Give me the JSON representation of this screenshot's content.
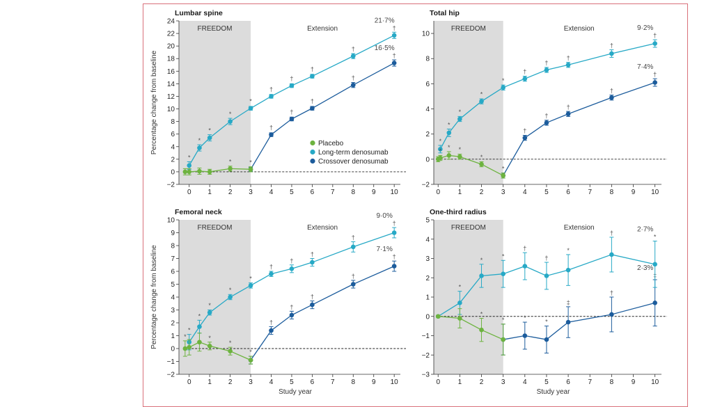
{
  "colors": {
    "placebo": "#6db33f",
    "long_term": "#27a9c6",
    "crossover": "#1c5c9c",
    "shade": "#dcdcdc",
    "frame": "#d9707a",
    "axis": "#333333",
    "marker_text": "#555555"
  },
  "figure": {
    "region_freedom": "FREEDOM",
    "region_extension": "Extension",
    "y_axis_label": "Percentage change from baseline",
    "x_axis_label": "Study year",
    "legend": [
      {
        "key": "placebo",
        "label": "Placebo"
      },
      {
        "key": "long_term",
        "label": "Long-term denosumab"
      },
      {
        "key": "crossover",
        "label": "Crossover denosumab"
      }
    ]
  },
  "chart_data": [
    {
      "type": "line",
      "title": "Lumbar spine",
      "xlabel": "Study year",
      "ylabel": "Percentage change from baseline",
      "x_ticks": [
        0,
        1,
        2,
        3,
        4,
        5,
        6,
        7,
        8,
        9,
        10
      ],
      "ylim": [
        -2,
        24
      ],
      "y_ticks": [
        -2,
        0,
        2,
        4,
        6,
        8,
        10,
        12,
        14,
        16,
        18,
        20,
        22,
        24
      ],
      "shaded_range": [
        -0.5,
        3
      ],
      "series": [
        {
          "key": "placebo",
          "name": "Placebo",
          "x": [
            -0.2,
            0,
            0.5,
            1,
            2,
            3
          ],
          "y": [
            0,
            0,
            0.1,
            0,
            0.5,
            0.4
          ],
          "err": [
            0.5,
            0.5,
            0.5,
            0.4,
            0.4,
            0.4
          ],
          "markers": [
            "",
            "",
            "",
            "",
            "*",
            "*"
          ]
        },
        {
          "key": "long_term",
          "name": "Long-term denosumab",
          "x": [
            0,
            0.5,
            1,
            2,
            3,
            4,
            5,
            6,
            8,
            10
          ],
          "y": [
            1.0,
            3.8,
            5.4,
            8.0,
            10.1,
            12.0,
            13.7,
            15.2,
            18.4,
            21.7
          ],
          "err": [
            0.6,
            0.5,
            0.5,
            0.5,
            0.3,
            0.3,
            0.3,
            0.3,
            0.4,
            0.5
          ],
          "markers": [
            "*",
            "*",
            "*",
            "*",
            "*",
            "†",
            "†",
            "†",
            "†",
            "†"
          ],
          "end_label": "21·7%"
        },
        {
          "key": "crossover",
          "name": "Crossover denosumab",
          "x": [
            3,
            4,
            5,
            6,
            8,
            10
          ],
          "y": [
            0.4,
            5.9,
            8.4,
            10.1,
            13.8,
            17.3
          ],
          "err": [
            0.3,
            0.3,
            0.3,
            0.3,
            0.4,
            0.5
          ],
          "markers": [
            "",
            "†",
            "†",
            "†",
            "†",
            "†"
          ],
          "end_label": "16·5%"
        }
      ]
    },
    {
      "type": "line",
      "title": "Total hip",
      "xlabel": "Study year",
      "ylabel": "",
      "x_ticks": [
        0,
        1,
        2,
        3,
        4,
        5,
        6,
        7,
        8,
        9,
        10
      ],
      "ylim": [
        -2,
        11
      ],
      "y_ticks": [
        -2,
        0,
        2,
        4,
        6,
        8,
        10
      ],
      "shaded_range": [
        -0.5,
        3
      ],
      "series": [
        {
          "key": "placebo",
          "name": "Placebo",
          "x": [
            0,
            0.1,
            0.5,
            1,
            2,
            3
          ],
          "y": [
            0,
            0.1,
            0.3,
            0.2,
            -0.4,
            -1.3
          ],
          "err": [
            0.2,
            0.2,
            0.3,
            0.2,
            0.2,
            0.2
          ],
          "markers": [
            "",
            "*",
            "*",
            "*",
            "*",
            "*"
          ]
        },
        {
          "key": "long_term",
          "name": "Long-term denosumab",
          "x": [
            0.1,
            0.5,
            1,
            2,
            3,
            4,
            5,
            6,
            8,
            10
          ],
          "y": [
            0.8,
            2.1,
            3.2,
            4.6,
            5.7,
            6.4,
            7.1,
            7.5,
            8.4,
            9.2
          ],
          "err": [
            0.3,
            0.3,
            0.2,
            0.2,
            0.2,
            0.2,
            0.2,
            0.2,
            0.3,
            0.3
          ],
          "markers": [
            "*",
            "*",
            "*",
            "*",
            "*",
            "†",
            "†",
            "†",
            "†",
            "†"
          ],
          "end_label": "9·2%"
        },
        {
          "key": "crossover",
          "name": "Crossover denosumab",
          "x": [
            3,
            4,
            5,
            6,
            8,
            10
          ],
          "y": [
            -1.3,
            1.7,
            2.9,
            3.6,
            4.9,
            6.1
          ],
          "err": [
            0.2,
            0.2,
            0.2,
            0.2,
            0.2,
            0.3
          ],
          "markers": [
            "",
            "†",
            "†",
            "†",
            "†",
            "†"
          ],
          "end_label": "7·4%"
        }
      ]
    },
    {
      "type": "line",
      "title": "Femoral neck",
      "xlabel": "Study year",
      "ylabel": "Percentage change from baseline",
      "x_ticks": [
        0,
        1,
        2,
        3,
        4,
        5,
        6,
        7,
        8,
        9,
        10
      ],
      "ylim": [
        -2,
        10
      ],
      "y_ticks": [
        -2,
        -1,
        0,
        1,
        2,
        3,
        4,
        5,
        6,
        7,
        8,
        9,
        10
      ],
      "shaded_range": [
        -0.5,
        3
      ],
      "series": [
        {
          "key": "placebo",
          "name": "Placebo",
          "x": [
            -0.2,
            0,
            0.5,
            1,
            2,
            3
          ],
          "y": [
            0,
            0.1,
            0.5,
            0.2,
            -0.2,
            -0.9
          ],
          "err": [
            0.6,
            0.6,
            0.7,
            0.3,
            0.3,
            0.3
          ],
          "markers": [
            "*",
            "",
            "",
            "*",
            "*",
            "*"
          ]
        },
        {
          "key": "long_term",
          "name": "Long-term denosumab",
          "x": [
            0,
            0.5,
            1,
            2,
            3,
            4,
            5,
            6,
            8,
            10
          ],
          "y": [
            0.5,
            1.7,
            2.8,
            4.0,
            4.9,
            5.8,
            6.2,
            6.7,
            7.9,
            9.0
          ],
          "err": [
            0.6,
            0.5,
            0.2,
            0.2,
            0.2,
            0.2,
            0.3,
            0.3,
            0.4,
            0.4
          ],
          "markers": [
            "*",
            "*",
            "*",
            "*",
            "*",
            "†",
            "†",
            "†",
            "†",
            "†"
          ],
          "end_label": "9·0%"
        },
        {
          "key": "crossover",
          "name": "Crossover denosumab",
          "x": [
            3,
            4,
            5,
            6,
            8,
            10
          ],
          "y": [
            -0.9,
            1.4,
            2.6,
            3.4,
            5.0,
            6.4
          ],
          "err": [
            0.3,
            0.3,
            0.3,
            0.3,
            0.3,
            0.4
          ],
          "markers": [
            "",
            "†",
            "†",
            "†",
            "†",
            "†"
          ],
          "end_label": "7·1%"
        }
      ]
    },
    {
      "type": "line",
      "title": "One-third radius",
      "xlabel": "Study year",
      "ylabel": "",
      "x_ticks": [
        0,
        1,
        2,
        3,
        4,
        5,
        6,
        7,
        8,
        9,
        10
      ],
      "ylim": [
        -3,
        5
      ],
      "y_ticks": [
        -3,
        -2,
        -1,
        0,
        1,
        2,
        3,
        4,
        5
      ],
      "shaded_range": [
        -0.5,
        3
      ],
      "series": [
        {
          "key": "placebo",
          "name": "Placebo",
          "x": [
            0,
            1,
            2,
            3
          ],
          "y": [
            0,
            -0.1,
            -0.7,
            -1.2
          ],
          "err": [
            0.05,
            0.5,
            0.6,
            0.8
          ],
          "markers": [
            "",
            "",
            "*",
            "*"
          ]
        },
        {
          "key": "long_term",
          "name": "Long-term denosumab",
          "x": [
            0,
            1,
            2,
            3,
            4,
            5,
            6,
            8,
            10
          ],
          "y": [
            0,
            0.7,
            2.1,
            2.2,
            2.6,
            2.1,
            2.4,
            3.2,
            2.7
          ],
          "err": [
            0.05,
            0.6,
            0.6,
            0.7,
            0.7,
            0.7,
            0.8,
            0.9,
            1.2
          ],
          "markers": [
            "",
            "*",
            "*",
            "*",
            "†",
            "†",
            "*",
            "†",
            "*"
          ],
          "end_label": "2·7%"
        },
        {
          "key": "crossover",
          "name": "Crossover denosumab",
          "x": [
            3,
            4,
            5,
            6,
            8,
            10
          ],
          "y": [
            -1.2,
            -1.0,
            -1.2,
            -0.3,
            0.1,
            0.7
          ],
          "err": [
            0.8,
            0.7,
            0.7,
            0.8,
            0.9,
            1.2
          ],
          "markers": [
            "",
            "*",
            "*",
            "‡",
            "†",
            "‡"
          ],
          "end_label": "2·3%"
        }
      ]
    }
  ]
}
